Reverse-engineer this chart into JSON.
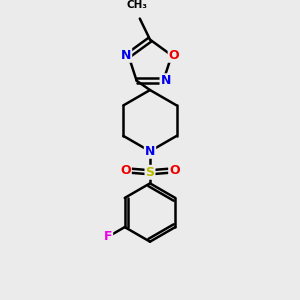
{
  "background_color": "#ebebeb",
  "atom_colors": {
    "C": "#000000",
    "N": "#0000ee",
    "O": "#ee0000",
    "S": "#bbbb00",
    "F": "#ee00ee"
  },
  "bond_color": "#000000",
  "bond_width": 1.8,
  "figsize": [
    3.0,
    3.0
  ],
  "dpi": 100
}
